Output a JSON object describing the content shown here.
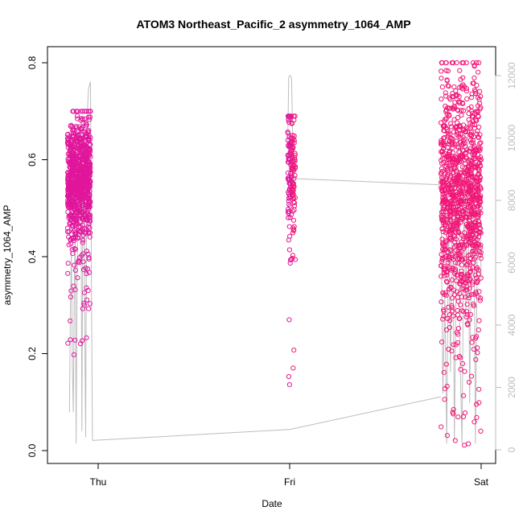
{
  "chart_data": {
    "type": "scatter",
    "title": "ATOM3 Northeast_Pacific_2 asymmetry_1064_AMP",
    "xlabel": "Date",
    "ylabel": "asymmetry_1064_AMP",
    "x_ticks": [
      "Thu",
      "Fri",
      "Sat"
    ],
    "ylim": [
      0,
      0.8
    ],
    "y_ticks": [
      "0.0",
      "0.2",
      "0.4",
      "0.6",
      "0.8"
    ],
    "y2lim": [
      0,
      12000
    ],
    "y2_ticks": [
      "0",
      "2000",
      "4000",
      "6000",
      "8000",
      "10000",
      "12000"
    ],
    "colors": {
      "points_early": "#e0169b",
      "points_late": "#f01878",
      "altitude_line": "#bdbdbd"
    },
    "series": [
      {
        "kind": "points",
        "clusters": [
          {
            "day_offset_range": [
              -0.16,
              -0.04
            ],
            "center": 0.56,
            "spread": 0.06,
            "low_tail": 0.19,
            "high": 0.7
          },
          {
            "day_offset_range": [
              0.99,
              1.03
            ],
            "center": 0.57,
            "spread": 0.07,
            "low_tail": 0.06,
            "high": 0.69
          },
          {
            "day_offset_range": [
              1.79,
              2.0
            ],
            "center": 0.53,
            "spread": 0.12,
            "low_tail": 0.005,
            "high": 0.8
          }
        ]
      },
      {
        "kind": "line",
        "axis": "right",
        "points": [
          [
            -0.15,
            1200
          ],
          [
            -0.145,
            4500
          ],
          [
            -0.14,
            6500
          ],
          [
            -0.135,
            2800
          ],
          [
            -0.13,
            1200
          ],
          [
            -0.125,
            5200
          ],
          [
            -0.12,
            7000
          ],
          [
            -0.115,
            200
          ],
          [
            -0.11,
            5500
          ],
          [
            -0.105,
            8200
          ],
          [
            -0.1,
            9000
          ],
          [
            -0.095,
            7500
          ],
          [
            -0.09,
            9200
          ],
          [
            -0.085,
            600
          ],
          [
            -0.08,
            8200
          ],
          [
            -0.075,
            9400
          ],
          [
            -0.07,
            4000
          ],
          [
            -0.065,
            400
          ],
          [
            -0.06,
            8500
          ],
          [
            -0.055,
            11000
          ],
          [
            -0.05,
            11600
          ],
          [
            -0.045,
            11700
          ],
          [
            -0.04,
            11800
          ],
          [
            -0.035,
            5000
          ],
          [
            -0.03,
            300
          ],
          [
            0.99,
            9800
          ],
          [
            0.995,
            11950
          ],
          [
            1.0,
            12000
          ],
          [
            1.005,
            12000
          ],
          [
            1.01,
            11900
          ],
          [
            1.02,
            8700
          ],
          [
            1.79,
            8200
          ],
          [
            1.8,
            1800
          ],
          [
            1.81,
            5000
          ],
          [
            1.82,
            200
          ],
          [
            1.83,
            7500
          ],
          [
            1.84,
            2500
          ],
          [
            1.85,
            9500
          ],
          [
            1.86,
            300
          ],
          [
            1.87,
            6000
          ],
          [
            1.88,
            9800
          ],
          [
            1.89,
            3000
          ],
          [
            1.9,
            200
          ],
          [
            1.91,
            8000
          ],
          [
            1.92,
            4500
          ],
          [
            1.93,
            10200
          ],
          [
            1.94,
            1500
          ],
          [
            1.95,
            7000
          ],
          [
            1.96,
            9500
          ],
          [
            1.97,
            200
          ],
          [
            1.98,
            6500
          ],
          [
            1.99,
            9000
          ],
          [
            2.0,
            5500
          ]
        ],
        "connectors": [
          [
            [
              -0.03,
              300
            ],
            [
              1.0,
              650
            ]
          ],
          [
            [
              1.02,
              8700
            ],
            [
              1.78,
              8500
            ]
          ],
          [
            [
              1.0,
              650
            ],
            [
              1.79,
              1700
            ]
          ]
        ]
      }
    ]
  }
}
